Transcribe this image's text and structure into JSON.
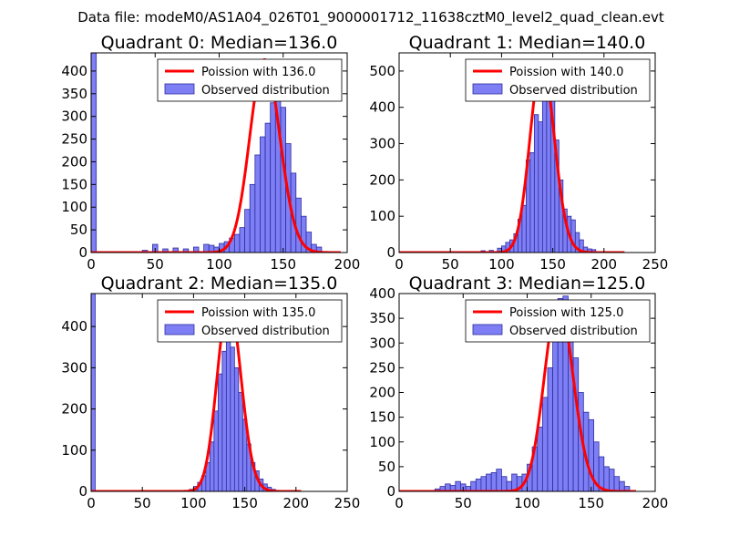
{
  "figure_title": "Data file: modeM0/AS1A04_026T01_9000001712_11638cztM0_level2_quad_clean.evt",
  "colors": {
    "poisson": "#ff0000",
    "bar_fill": "#7f7ff5",
    "bar_edge": "#2c2ca0"
  },
  "chart_data": [
    {
      "type": "bar",
      "title": "Quadrant 0: Median=136.0",
      "xlim": [
        0,
        200
      ],
      "ylim": [
        0,
        440
      ],
      "xticks": [
        0,
        50,
        100,
        150,
        200
      ],
      "yticks": [
        0,
        50,
        100,
        150,
        200,
        250,
        300,
        350,
        400
      ],
      "bin_width": 4,
      "bars": {
        "x": [
          0,
          32,
          40,
          48,
          56,
          64,
          72,
          80,
          88,
          92,
          96,
          100,
          104,
          108,
          112,
          116,
          120,
          124,
          128,
          132,
          136,
          140,
          144,
          148,
          152,
          156,
          160,
          164,
          168,
          172,
          176,
          180
        ],
        "values": [
          445,
          2,
          5,
          18,
          8,
          10,
          8,
          12,
          18,
          16,
          12,
          20,
          24,
          32,
          40,
          55,
          95,
          150,
          215,
          255,
          285,
          330,
          340,
          320,
          240,
          175,
          120,
          80,
          45,
          18,
          12,
          2
        ]
      },
      "poisson_mean": 136.0,
      "poisson_peak": 425,
      "poisson_range": [
        0,
        195
      ],
      "legend": [
        "Poission with 136.0",
        "Observed distribution"
      ]
    },
    {
      "type": "bar",
      "title": "Quadrant 1: Median=140.0",
      "xlim": [
        0,
        250
      ],
      "ylim": [
        0,
        550
      ],
      "xticks": [
        0,
        50,
        100,
        150,
        200,
        250
      ],
      "yticks": [
        0,
        100,
        200,
        300,
        400,
        500
      ],
      "bin_width": 4,
      "bars": {
        "x": [
          72,
          80,
          88,
          96,
          100,
          104,
          108,
          112,
          116,
          120,
          124,
          128,
          132,
          136,
          140,
          144,
          148,
          152,
          156,
          160,
          164,
          168,
          172,
          176,
          180,
          184,
          188,
          192
        ],
        "values": [
          2,
          5,
          6,
          12,
          18,
          28,
          35,
          52,
          92,
          130,
          255,
          275,
          380,
          360,
          495,
          470,
          420,
          310,
          200,
          120,
          100,
          90,
          55,
          35,
          15,
          10,
          8,
          2
        ]
      },
      "poisson_mean": 140.0,
      "poisson_peak": 525,
      "poisson_range": [
        0,
        220
      ],
      "legend": [
        "Poission with 140.0",
        "Observed distribution"
      ]
    },
    {
      "type": "bar",
      "title": "Quadrant 2: Median=135.0",
      "xlim": [
        0,
        250
      ],
      "ylim": [
        0,
        480
      ],
      "xticks": [
        0,
        50,
        100,
        150,
        200,
        250
      ],
      "yticks": [
        0,
        100,
        200,
        300,
        400
      ],
      "bin_width": 4,
      "bars": {
        "x": [
          0,
          96,
          100,
          104,
          108,
          112,
          116,
          120,
          124,
          128,
          132,
          136,
          140,
          144,
          148,
          152,
          156,
          160,
          164,
          168,
          172,
          176,
          180
        ],
        "values": [
          480,
          5,
          12,
          22,
          38,
          70,
          120,
          195,
          285,
          340,
          390,
          350,
          300,
          240,
          175,
          115,
          70,
          50,
          30,
          18,
          10,
          5,
          2
        ]
      },
      "poisson_mean": 135.0,
      "poisson_peak": 460,
      "poisson_range": [
        0,
        205
      ],
      "legend": [
        "Poission with 135.0",
        "Observed distribution"
      ]
    },
    {
      "type": "bar",
      "title": "Quadrant 3: Median=125.0",
      "xlim": [
        0,
        200
      ],
      "ylim": [
        0,
        400
      ],
      "xticks": [
        0,
        50,
        100,
        150,
        200
      ],
      "yticks": [
        0,
        50,
        100,
        150,
        200,
        250,
        300,
        350,
        400
      ],
      "bin_width": 4,
      "bars": {
        "x": [
          28,
          32,
          36,
          40,
          44,
          48,
          52,
          56,
          60,
          64,
          68,
          72,
          76,
          80,
          84,
          88,
          92,
          96,
          100,
          104,
          108,
          112,
          116,
          120,
          124,
          128,
          132,
          136,
          140,
          144,
          148,
          152,
          156,
          160,
          164,
          168,
          172,
          176,
          180
        ],
        "values": [
          5,
          10,
          15,
          12,
          20,
          15,
          10,
          20,
          25,
          30,
          35,
          38,
          45,
          30,
          20,
          35,
          30,
          35,
          55,
          90,
          130,
          190,
          250,
          320,
          390,
          395,
          360,
          270,
          200,
          160,
          145,
          100,
          70,
          50,
          45,
          30,
          20,
          10,
          2
        ]
      },
      "poisson_mean": 125.0,
      "poisson_peak": 385,
      "poisson_range": [
        0,
        185
      ],
      "legend": [
        "Poission with 125.0",
        "Observed distribution"
      ]
    }
  ]
}
